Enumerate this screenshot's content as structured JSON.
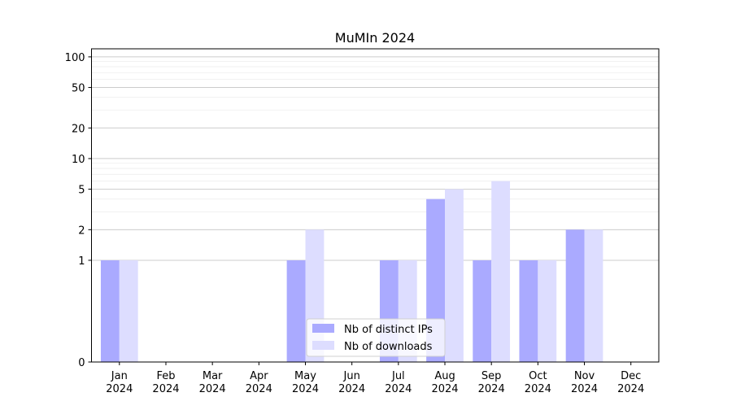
{
  "chart_data": {
    "type": "bar",
    "title": "MuMIn 2024",
    "xlabel": "",
    "ylabel": "",
    "y_scale": "symlog",
    "ylim": [
      0,
      120
    ],
    "y_ticks": [
      0,
      1,
      2,
      5,
      10,
      20,
      50,
      100
    ],
    "grid": "horizontal, major and minor",
    "legend_position": "lower center",
    "categories": [
      [
        "Jan",
        "2024"
      ],
      [
        "Feb",
        "2024"
      ],
      [
        "Mar",
        "2024"
      ],
      [
        "Apr",
        "2024"
      ],
      [
        "May",
        "2024"
      ],
      [
        "Jun",
        "2024"
      ],
      [
        "Jul",
        "2024"
      ],
      [
        "Aug",
        "2024"
      ],
      [
        "Sep",
        "2024"
      ],
      [
        "Oct",
        "2024"
      ],
      [
        "Nov",
        "2024"
      ],
      [
        "Dec",
        "2024"
      ]
    ],
    "series": [
      {
        "name": "Nb of distinct IPs",
        "color": "#aaaaff",
        "values": [
          1,
          0,
          0,
          0,
          1,
          0,
          1,
          4,
          1,
          1,
          2,
          0
        ]
      },
      {
        "name": "Nb of downloads",
        "color": "#ddddff",
        "values": [
          1,
          0,
          0,
          0,
          2,
          0,
          1,
          5,
          6,
          1,
          2,
          0
        ]
      }
    ]
  }
}
